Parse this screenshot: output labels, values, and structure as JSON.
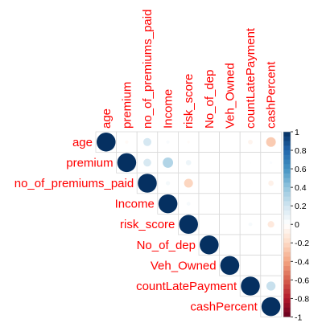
{
  "chart_data": {
    "type": "heatmap",
    "style": "corrplot upper triangle, circles",
    "variables": [
      "age",
      "premium",
      "no_of_premiums_paid",
      "Income",
      "risk_score",
      "No_of_dep",
      "Veh_Owned",
      "countLatePayment",
      "cashPercent"
    ],
    "label_color": "#ff0000",
    "matrix": [
      [
        1.0,
        -0.03,
        0.18,
        0.03,
        -0.02,
        0.0,
        0.0,
        -0.06,
        -0.26
      ],
      [
        -0.03,
        1.0,
        0.17,
        0.3,
        0.08,
        0.0,
        0.0,
        0.01,
        0.02
      ],
      [
        0.18,
        0.17,
        1.0,
        0.05,
        -0.22,
        0.0,
        0.0,
        0.01,
        -0.08
      ],
      [
        0.03,
        0.3,
        0.05,
        1.0,
        0.04,
        0.0,
        0.0,
        0.0,
        0.0
      ],
      [
        -0.02,
        0.08,
        -0.22,
        0.04,
        1.0,
        0.0,
        0.0,
        0.04,
        -0.12
      ],
      [
        0.0,
        0.0,
        0.0,
        0.0,
        0.0,
        1.0,
        0.0,
        0.0,
        0.0
      ],
      [
        0.0,
        0.0,
        0.0,
        0.0,
        0.0,
        0.0,
        1.0,
        0.0,
        0.0
      ],
      [
        -0.06,
        0.01,
        0.01,
        0.0,
        0.04,
        0.0,
        0.0,
        1.0,
        0.23
      ],
      [
        -0.26,
        0.02,
        -0.08,
        0.0,
        -0.12,
        0.0,
        0.0,
        0.23,
        1.0
      ]
    ],
    "colorbar": {
      "range": [
        -1,
        1
      ],
      "ticks": [
        "1",
        "0.8",
        "0.6",
        "0.4",
        "0.2",
        "0",
        "-0.2",
        "-0.4",
        "-0.6",
        "-0.8",
        "-1"
      ],
      "colors": [
        "#053061",
        "#2166ac",
        "#4393c3",
        "#92c5de",
        "#d1e5f0",
        "#ffffff",
        "#fddbc7",
        "#f4a582",
        "#d6604d",
        "#b2182b",
        "#67001f"
      ]
    }
  }
}
